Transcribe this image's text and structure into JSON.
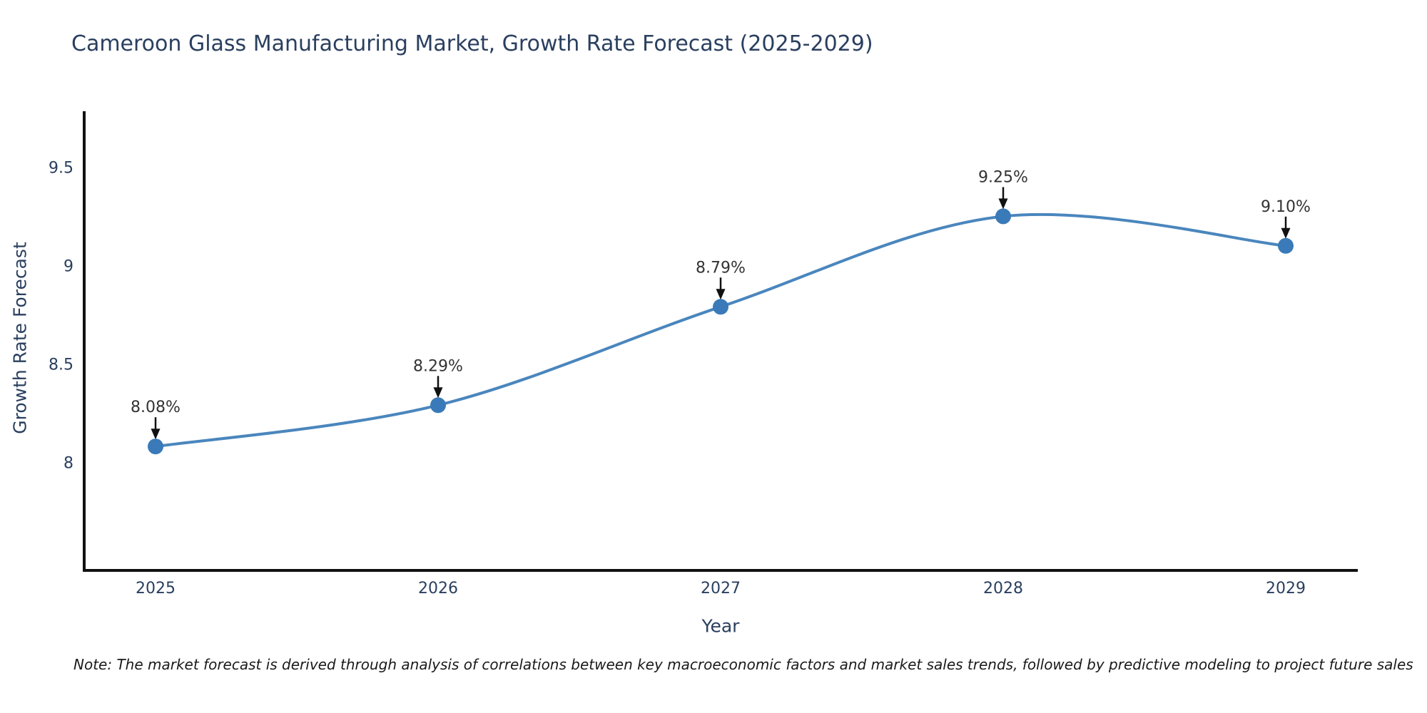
{
  "title": "Cameroon Glass Manufacturing Market, Growth Rate Forecast (2025-2029)",
  "note": "Note: The market forecast is derived through analysis of correlations between key macroeconomic factors and market sales trends, followed by predictive modeling to project future sales",
  "chart_data": {
    "type": "line",
    "categories": [
      "2025",
      "2026",
      "2027",
      "2028",
      "2029"
    ],
    "values": [
      8.08,
      8.29,
      8.79,
      9.25,
      9.1
    ],
    "point_labels": [
      "8.08%",
      "8.29%",
      "8.79%",
      "9.25%",
      "9.10%"
    ],
    "title": "Cameroon Glass Manufacturing Market, Growth Rate Forecast (2025-2029)",
    "xlabel": "Year",
    "ylabel": "Growth Rate Forecast",
    "yticks": [
      8,
      8.5,
      9,
      9.5
    ],
    "ytick_labels": [
      "8",
      "8.5",
      "9",
      "9.5"
    ],
    "ylim": [
      7.45,
      9.77
    ],
    "grid": false,
    "legend": false,
    "line_shape": "spline",
    "colors": {
      "line": "#4a86bd",
      "marker": "#3a7ab8",
      "axis": "#111111",
      "annotation_text": "#333333",
      "annotation_arrow": "#111111",
      "tick_text": "#2a3f5f",
      "title_text": "#2a3f5f"
    }
  }
}
